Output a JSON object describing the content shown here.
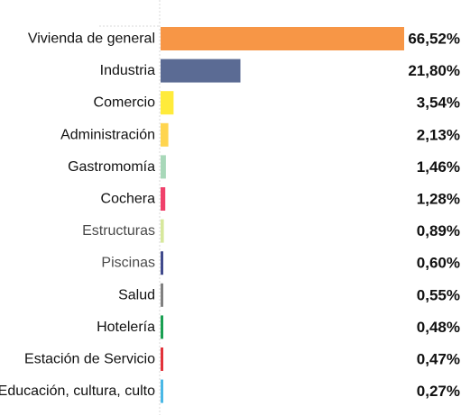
{
  "chart_data": {
    "type": "bar",
    "orientation": "horizontal",
    "title": "",
    "xlabel": "",
    "ylabel": "",
    "xlim": [
      0,
      66.52
    ],
    "grid": false,
    "legend": "none",
    "categories": [
      "Vivienda de general",
      "Industria",
      "Comercio",
      "Administración",
      "Gastromomía",
      "Cochera",
      "Estructuras",
      "Piscinas",
      "Salud",
      "Hotelería",
      "Estación de Servicio",
      "Educación, cultura, culto"
    ],
    "values": [
      66.52,
      21.8,
      3.54,
      2.13,
      1.46,
      1.28,
      0.89,
      0.6,
      0.55,
      0.48,
      0.47,
      0.27
    ],
    "value_labels": [
      "66,52%",
      "21,80%",
      "3,54%",
      "2,13%",
      "1,46%",
      "1,28%",
      "0,89%",
      "0,60%",
      "0,55%",
      "0,48%",
      "0,47%",
      "0,27%"
    ],
    "colors": [
      "#f79646",
      "#5b6b94",
      "#ffeb3b",
      "#ffd54f",
      "#a8d8b9",
      "#f0416b",
      "#d7e89c",
      "#404a8c",
      "#808080",
      "#1aa052",
      "#e2323a",
      "#4ab8e6"
    ],
    "muted_labels": [
      6,
      7
    ]
  }
}
